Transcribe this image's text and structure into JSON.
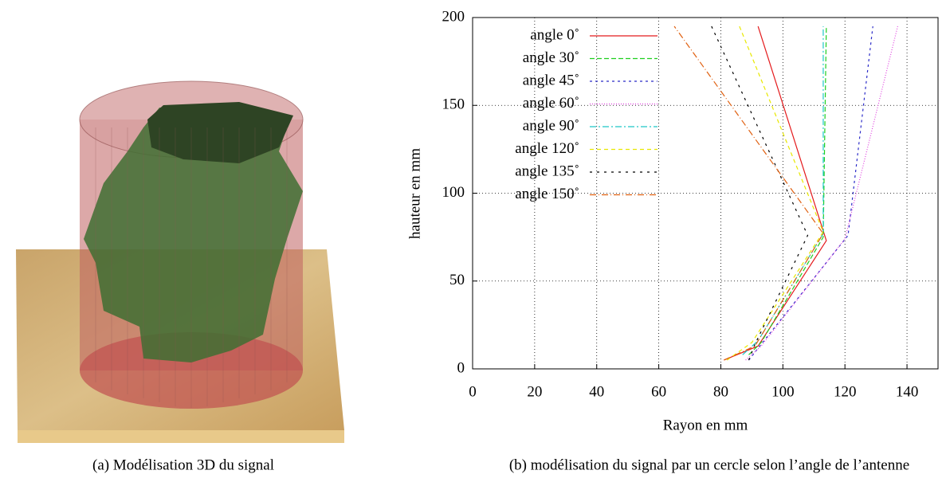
{
  "chart_data": {
    "type": "line",
    "xlabel": "Rayon en mm",
    "ylabel": "hauteur en mm",
    "xlim": [
      0,
      150
    ],
    "ylim": [
      0,
      200
    ],
    "xticks": [
      0,
      20,
      40,
      60,
      80,
      100,
      120,
      140
    ],
    "yticks": [
      0,
      50,
      100,
      150,
      200
    ],
    "grid": true,
    "legend": "upper left",
    "series": [
      {
        "name": "angle 0˚",
        "color": "#e41a1c",
        "x": [
          81,
          92,
          114,
          92
        ],
        "values": [
          5,
          13,
          73,
          195
        ]
      },
      {
        "name": "angle 30˚",
        "color": "#1fcf1f",
        "x": [
          89,
          93,
          113,
          114
        ],
        "values": [
          8,
          15,
          75,
          195
        ]
      },
      {
        "name": "angle 45˚",
        "color": "#2b2bc8",
        "x": [
          89,
          93,
          121,
          129
        ],
        "values": [
          5,
          14,
          76,
          195
        ]
      },
      {
        "name": "angle 60˚",
        "color": "#e040e0",
        "x": [
          88,
          93,
          120,
          137
        ],
        "values": [
          5,
          13,
          74,
          195
        ]
      },
      {
        "name": "angle 90˚",
        "color": "#1fc8c8",
        "x": [
          87,
          92,
          113,
          113
        ],
        "values": [
          8,
          16,
          77,
          195
        ]
      },
      {
        "name": "angle 120˚",
        "color": "#e8e800",
        "x": [
          82,
          90,
          113,
          86
        ],
        "values": [
          5,
          15,
          78,
          195
        ]
      },
      {
        "name": "angle 135˚",
        "color": "#000000",
        "x": [
          89,
          91,
          108,
          77
        ],
        "values": [
          5,
          14,
          76,
          195
        ]
      },
      {
        "name": "angle 150˚",
        "color": "#e06010",
        "x": [
          81,
          91,
          113,
          65
        ],
        "values": [
          5,
          13,
          77,
          195
        ]
      }
    ]
  },
  "captions": [
    "(a) Modélisation 3D du signal",
    "(b) modélisation du signal par un cercle selon l’angle de l’antenne"
  ]
}
